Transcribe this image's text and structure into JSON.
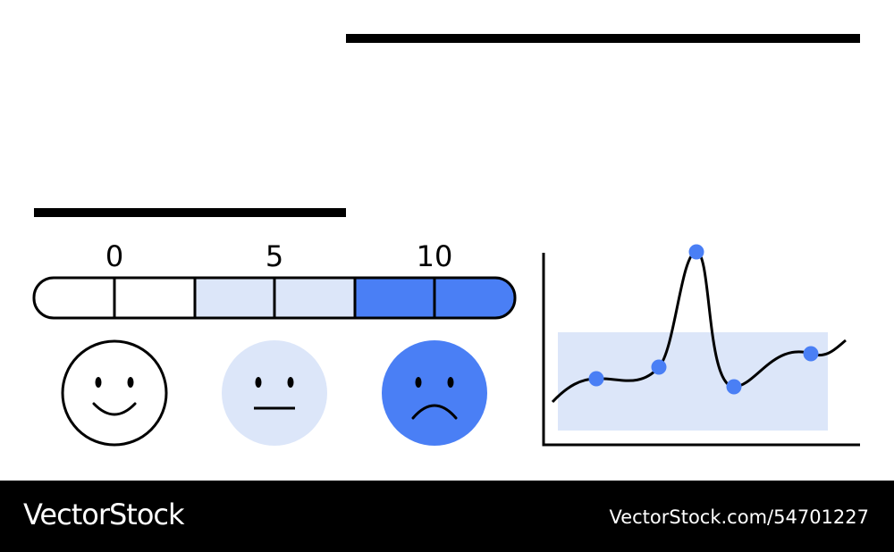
{
  "scale": {
    "labels": [
      "0",
      "5",
      "10"
    ]
  },
  "footer": {
    "brand": "VectorStock",
    "id": "VectorStock.com/54701227"
  }
}
